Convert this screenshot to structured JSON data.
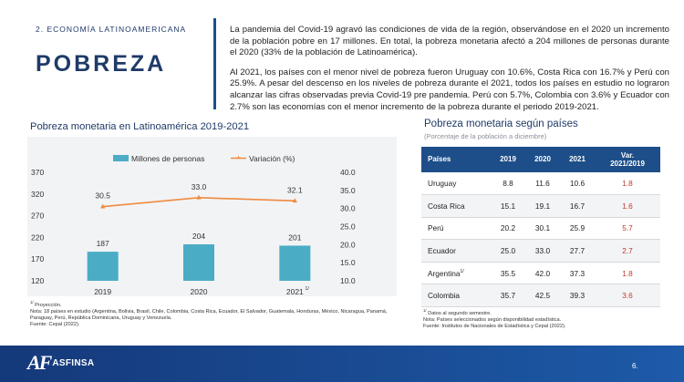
{
  "header": {
    "section": "2. ECONOMÍA LATINOAMERICANA",
    "title": "POBREZA",
    "paragraph_1": "La pandemia del Covid-19 agravó las condiciones de vida de la región, observándose en el 2020 un incremento de la población pobre en 17 millones. En total, la pobreza monetaria afectó a 204 millones de personas durante el 2020 (33% de la población de Latinoamérica).",
    "paragraph_2": "Al 2021, los países con el menor nivel de pobreza fueron Uruguay con 10.6%, Costa Rica con 16.7% y Perú con 25.9%. A pesar del descenso en los niveles de pobreza durante el 2021, todos los países en estudio no lograron alcanzar las cifras observadas previa Covid-19 pre pandemia. Perú con 5.7%, Colombia con 3.6% y Ecuador con 2.7% son las economías con el menor incremento de la pobreza durante el periodo 2019-2021."
  },
  "chart_data": {
    "type": "bar",
    "title": "Pobreza monetaria en Latinoamérica 2019-2021",
    "categories": [
      "2019",
      "2020",
      "2021"
    ],
    "category_suffixes": [
      "",
      "",
      "1/"
    ],
    "series": [
      {
        "name": "Millones de personas",
        "type": "bar",
        "axis": "left",
        "values": [
          187,
          204,
          201
        ],
        "labels": [
          "187",
          "204",
          "201"
        ]
      },
      {
        "name": "Variación (%)",
        "type": "line",
        "axis": "right",
        "values": [
          30.5,
          33.0,
          32.1
        ],
        "labels": [
          "30.5",
          "33.0",
          "32.1"
        ]
      }
    ],
    "y_left": {
      "min": 120,
      "max": 370,
      "ticks": [
        "120",
        "170",
        "220",
        "270",
        "320",
        "370"
      ]
    },
    "y_right": {
      "min": 10,
      "max": 40,
      "ticks": [
        "10.0",
        "15.0",
        "20.0",
        "25.0",
        "30.0",
        "35.0",
        "40.0"
      ]
    },
    "legend_position": "top",
    "grid": false
  },
  "colors": {
    "bar": "#4bacc6",
    "line": "#f08a40",
    "primary": "#1d4e89",
    "variation": "#c0392b"
  },
  "chart_notes": {
    "note_1_marker": "1/",
    "note_1": " Proyección.",
    "note_2": "Nota: 18 países en estudio (Argentina, Bolivia, Brasil, Chile, Colombia, Costa Rica, Ecuador, El Salvador, Guatemala, Honduras, México, Nicaragua, Panamá, Paraguay, Perú, República Dominicana, Uruguay y Venezuela.",
    "source": "Fuente: Cepal (2022)."
  },
  "table": {
    "title": "Pobreza monetaria según países",
    "subtitle": "(Porcentaje de la población a diciembre)",
    "headers": [
      "Países",
      "2019",
      "2020",
      "2021",
      "Var.",
      "2021/2019"
    ],
    "rows": [
      {
        "country": "Uruguay",
        "suffix": "",
        "y2019": "8.8",
        "y2020": "11.6",
        "y2021": "10.6",
        "var": "1.8"
      },
      {
        "country": "Costa Rica",
        "suffix": "",
        "y2019": "15.1",
        "y2020": "19.1",
        "y2021": "16.7",
        "var": "1.6"
      },
      {
        "country": "Perú",
        "suffix": "",
        "y2019": "20.2",
        "y2020": "30.1",
        "y2021": "25.9",
        "var": "5.7"
      },
      {
        "country": "Ecuador",
        "suffix": "",
        "y2019": "25.0",
        "y2020": "33.0",
        "y2021": "27.7",
        "var": "2.7"
      },
      {
        "country": "Argentina",
        "suffix": "1/",
        "y2019": "35.5",
        "y2020": "42.0",
        "y2021": "37.3",
        "var": "1.8"
      },
      {
        "country": "Colombia",
        "suffix": "",
        "y2019": "35.7",
        "y2020": "42.5",
        "y2021": "39.3",
        "var": "3.6"
      }
    ],
    "note_1_marker": "1/",
    "note_1": " Datos al segundo semestre.",
    "note_2": "Nota: Países seleccionados según disponibilidad estadística.",
    "source": "Fuente: Institutos de Nacionales de Estadística y Cepal (2022)."
  },
  "footer": {
    "logo_mark": "AF",
    "logo_text": "ASFINSA",
    "page_number": "6."
  }
}
